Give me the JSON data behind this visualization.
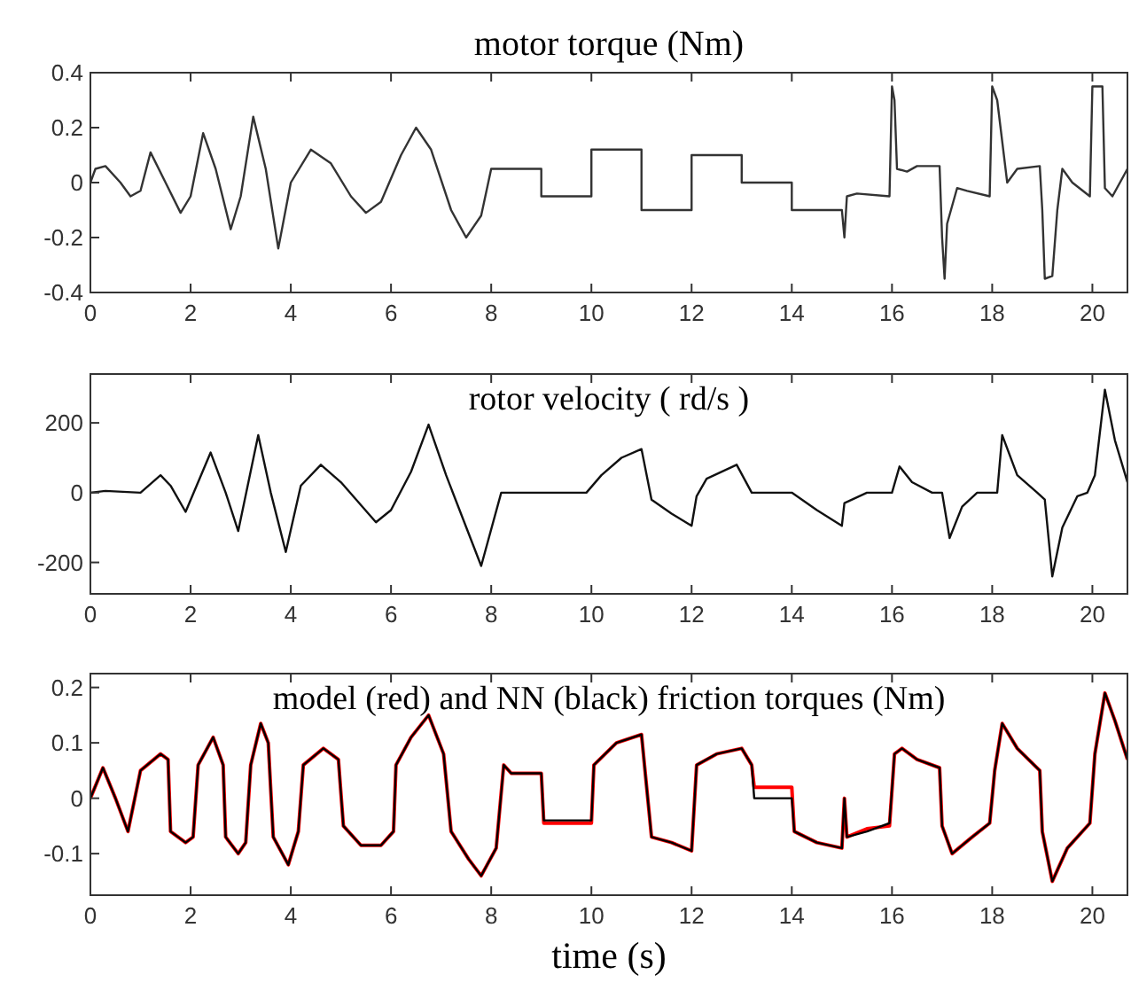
{
  "chart_data": [
    {
      "type": "line",
      "title": "motor torque (Nm)",
      "xlim": [
        0,
        20.7
      ],
      "xticks": [
        0,
        2,
        4,
        6,
        8,
        10,
        12,
        14,
        16,
        18,
        20
      ],
      "ylim": [
        -0.4,
        0.4
      ],
      "yticks": [
        -0.4,
        -0.2,
        0,
        0.2,
        0.4
      ],
      "grid": false,
      "series": [
        {
          "color": "#333333",
          "x": [
            0,
            0.1,
            0.3,
            0.6,
            0.8,
            1.0,
            1.2,
            1.5,
            1.8,
            2.0,
            2.25,
            2.5,
            2.8,
            3.0,
            3.25,
            3.5,
            3.75,
            4.0,
            4.4,
            4.8,
            5.2,
            5.5,
            5.8,
            6.2,
            6.5,
            6.8,
            7.2,
            7.5,
            7.8,
            8.0,
            9.0,
            9.0,
            10.0,
            10.0,
            11.0,
            11.0,
            12.0,
            12.0,
            13.0,
            13.0,
            14.0,
            14.0,
            15.0,
            15.05,
            15.1,
            15.3,
            15.95,
            16.0,
            16.05,
            16.1,
            16.3,
            16.5,
            16.95,
            17.0,
            17.05,
            17.1,
            17.3,
            17.5,
            17.95,
            18.0,
            18.1,
            18.3,
            18.5,
            18.95,
            19.0,
            19.05,
            19.2,
            19.3,
            19.4,
            19.6,
            19.95,
            20.0,
            20.2,
            20.25,
            20.4,
            20.7
          ],
          "values": [
            0,
            0.05,
            0.06,
            0,
            -0.05,
            -0.03,
            0.11,
            0,
            -0.11,
            -0.05,
            0.18,
            0.05,
            -0.17,
            -0.05,
            0.24,
            0.05,
            -0.24,
            0,
            0.12,
            0.07,
            -0.05,
            -0.11,
            -0.07,
            0.1,
            0.2,
            0.12,
            -0.1,
            -0.2,
            -0.12,
            0.05,
            0.05,
            -0.05,
            -0.05,
            0.12,
            0.12,
            -0.1,
            -0.1,
            0.1,
            0.1,
            0,
            0,
            -0.1,
            -0.1,
            -0.2,
            -0.05,
            -0.04,
            -0.05,
            0.35,
            0.3,
            0.05,
            0.04,
            0.06,
            0.06,
            -0.2,
            -0.35,
            -0.15,
            -0.02,
            -0.03,
            -0.05,
            0.35,
            0.3,
            0,
            0.05,
            0.06,
            -0.1,
            -0.35,
            -0.34,
            -0.1,
            0.05,
            0,
            -0.05,
            0.35,
            0.35,
            -0.02,
            -0.05,
            0.05
          ]
        }
      ]
    },
    {
      "type": "line",
      "title": "rotor velocity ( rd/s )",
      "xlim": [
        0,
        20.7
      ],
      "xticks": [
        0,
        2,
        4,
        6,
        8,
        10,
        12,
        14,
        16,
        18,
        20
      ],
      "ylim": [
        -290,
        340
      ],
      "yticks": [
        -200,
        0,
        200
      ],
      "grid": false,
      "series": [
        {
          "color": "#111111",
          "x": [
            0,
            0.3,
            1.0,
            1.4,
            1.6,
            1.9,
            2.4,
            2.7,
            2.95,
            3.35,
            3.6,
            3.9,
            4.2,
            4.6,
            5.0,
            5.7,
            6.0,
            6.4,
            6.75,
            7.1,
            7.8,
            8.2,
            9.9,
            10.2,
            10.6,
            11.0,
            11.2,
            11.6,
            12.0,
            12.1,
            12.3,
            12.9,
            13.2,
            14.0,
            14.5,
            15.0,
            15.05,
            15.5,
            16.0,
            16.15,
            16.4,
            16.8,
            17.0,
            17.15,
            17.4,
            17.7,
            18.1,
            18.2,
            18.5,
            18.9,
            19.05,
            19.2,
            19.4,
            19.7,
            19.9,
            20.05,
            20.25,
            20.45,
            20.7
          ],
          "values": [
            0,
            5,
            0,
            50,
            20,
            -55,
            115,
            0,
            -110,
            165,
            0,
            -170,
            20,
            80,
            30,
            -85,
            -50,
            60,
            195,
            50,
            -210,
            0,
            0,
            50,
            100,
            125,
            -20,
            -60,
            -95,
            -10,
            40,
            80,
            0,
            0,
            -50,
            -95,
            -30,
            0,
            0,
            75,
            30,
            0,
            0,
            -130,
            -40,
            0,
            0,
            165,
            50,
            0,
            -20,
            -240,
            -100,
            -10,
            0,
            50,
            295,
            150,
            30
          ]
        }
      ]
    },
    {
      "type": "line",
      "title": "model (red) and NN (black) friction torques (Nm)",
      "xlabel": "time (s)",
      "xlim": [
        0,
        20.7
      ],
      "xticks": [
        0,
        2,
        4,
        6,
        8,
        10,
        12,
        14,
        16,
        18,
        20
      ],
      "ylim": [
        -0.175,
        0.225
      ],
      "yticks": [
        -0.1,
        0,
        0.1,
        0.2
      ],
      "grid": false,
      "series": [
        {
          "color": "#ff0000",
          "x": [
            0,
            0.25,
            0.5,
            0.75,
            1.0,
            1.4,
            1.55,
            1.6,
            1.9,
            2.05,
            2.15,
            2.45,
            2.65,
            2.7,
            2.95,
            3.1,
            3.2,
            3.4,
            3.55,
            3.65,
            3.95,
            4.15,
            4.25,
            4.65,
            4.95,
            5.05,
            5.4,
            5.8,
            6.05,
            6.1,
            6.4,
            6.75,
            7.05,
            7.2,
            7.55,
            7.8,
            8.1,
            8.25,
            8.4,
            9.0,
            9.05,
            10.0,
            10.05,
            10.5,
            11.0,
            11.2,
            11.6,
            12.0,
            12.1,
            12.5,
            13.0,
            13.2,
            13.25,
            14.0,
            14.05,
            14.5,
            15.0,
            15.05,
            15.1,
            15.5,
            15.95,
            16.05,
            16.2,
            16.5,
            16.95,
            17.0,
            17.2,
            17.6,
            17.95,
            18.05,
            18.2,
            18.5,
            18.95,
            19.0,
            19.2,
            19.5,
            19.95,
            20.05,
            20.25,
            20.45,
            20.7
          ],
          "values": [
            0,
            0.055,
            0,
            -0.06,
            0.05,
            0.08,
            0.07,
            -0.06,
            -0.08,
            -0.07,
            0.06,
            0.11,
            0.06,
            -0.07,
            -0.1,
            -0.08,
            0.06,
            0.135,
            0.1,
            -0.07,
            -0.12,
            -0.06,
            0.06,
            0.09,
            0.07,
            -0.05,
            -0.085,
            -0.085,
            -0.06,
            0.06,
            0.11,
            0.15,
            0.08,
            -0.06,
            -0.11,
            -0.14,
            -0.09,
            0.06,
            0.045,
            0.045,
            -0.045,
            -0.045,
            0.06,
            0.1,
            0.115,
            -0.07,
            -0.08,
            -0.095,
            0.06,
            0.08,
            0.09,
            0.06,
            0.02,
            0.02,
            -0.06,
            -0.08,
            -0.09,
            0,
            -0.07,
            -0.055,
            -0.05,
            0.08,
            0.09,
            0.07,
            0.055,
            -0.05,
            -0.1,
            -0.07,
            -0.045,
            0.05,
            0.135,
            0.09,
            0.05,
            -0.06,
            -0.15,
            -0.09,
            -0.045,
            0.08,
            0.19,
            0.14,
            0.07
          ]
        },
        {
          "color": "#000000",
          "x": [
            0,
            0.25,
            0.5,
            0.75,
            1.0,
            1.4,
            1.55,
            1.6,
            1.9,
            2.05,
            2.15,
            2.45,
            2.65,
            2.7,
            2.95,
            3.1,
            3.2,
            3.4,
            3.55,
            3.65,
            3.95,
            4.15,
            4.25,
            4.65,
            4.95,
            5.05,
            5.4,
            5.8,
            6.05,
            6.1,
            6.4,
            6.75,
            7.05,
            7.2,
            7.55,
            7.8,
            8.1,
            8.25,
            8.4,
            9.0,
            9.05,
            10.0,
            10.05,
            10.5,
            11.0,
            11.2,
            11.6,
            12.0,
            12.1,
            12.5,
            13.0,
            13.2,
            13.25,
            14.0,
            14.05,
            14.5,
            15.0,
            15.05,
            15.1,
            15.5,
            15.95,
            16.05,
            16.2,
            16.5,
            16.95,
            17.0,
            17.2,
            17.6,
            17.95,
            18.05,
            18.2,
            18.5,
            18.95,
            19.0,
            19.2,
            19.5,
            19.95,
            20.05,
            20.25,
            20.45,
            20.7
          ],
          "values": [
            0,
            0.055,
            0,
            -0.06,
            0.05,
            0.08,
            0.07,
            -0.06,
            -0.08,
            -0.07,
            0.06,
            0.11,
            0.06,
            -0.07,
            -0.1,
            -0.08,
            0.06,
            0.135,
            0.1,
            -0.07,
            -0.12,
            -0.06,
            0.06,
            0.09,
            0.07,
            -0.05,
            -0.085,
            -0.085,
            -0.06,
            0.06,
            0.11,
            0.15,
            0.08,
            -0.06,
            -0.11,
            -0.14,
            -0.09,
            0.06,
            0.045,
            0.045,
            -0.04,
            -0.04,
            0.06,
            0.1,
            0.115,
            -0.07,
            -0.08,
            -0.095,
            0.06,
            0.08,
            0.09,
            0.06,
            0,
            0,
            -0.06,
            -0.08,
            -0.09,
            0,
            -0.07,
            -0.06,
            -0.045,
            0.08,
            0.09,
            0.07,
            0.055,
            -0.05,
            -0.1,
            -0.07,
            -0.045,
            0.05,
            0.135,
            0.09,
            0.05,
            -0.06,
            -0.15,
            -0.09,
            -0.045,
            0.08,
            0.19,
            0.14,
            0.07
          ]
        }
      ]
    }
  ]
}
